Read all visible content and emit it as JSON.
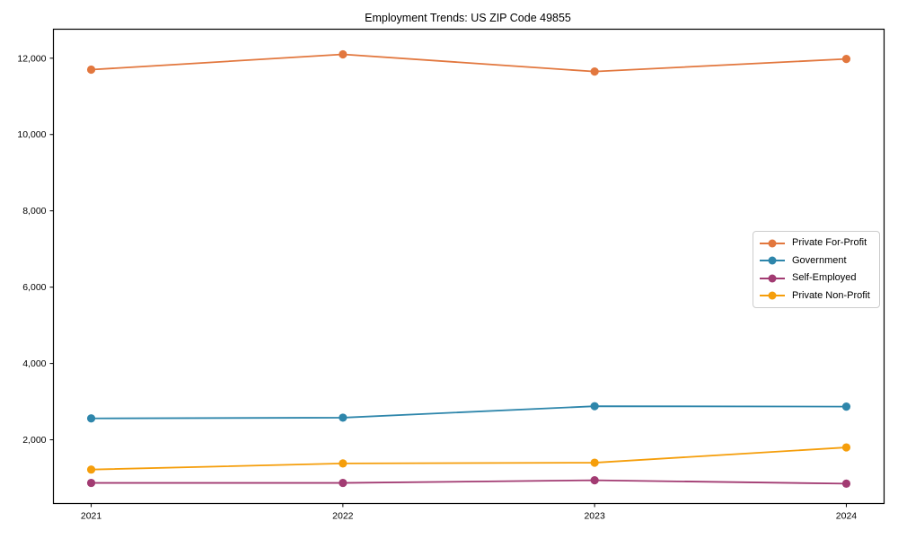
{
  "chart_data": {
    "type": "line",
    "title": "Employment Trends: US ZIP Code 49855",
    "x": [
      2021,
      2022,
      2023,
      2024
    ],
    "x_labels": [
      "2021",
      "2022",
      "2023",
      "2024"
    ],
    "series": [
      {
        "name": "Private For-Profit",
        "color": "#E2773E",
        "values": [
          11700,
          12100,
          11650,
          11980
        ]
      },
      {
        "name": "Government",
        "color": "#2E86AB",
        "values": [
          2560,
          2580,
          2880,
          2870
        ]
      },
      {
        "name": "Self-Employed",
        "color": "#A23B72",
        "values": [
          870,
          870,
          940,
          850
        ]
      },
      {
        "name": "Private Non-Profit",
        "color": "#F59E0B",
        "values": [
          1220,
          1380,
          1400,
          1800
        ]
      }
    ],
    "xlabel": "",
    "ylabel": "",
    "yticks": [
      2000,
      4000,
      6000,
      8000,
      10000,
      12000
    ],
    "ylim": [
      330,
      12760
    ],
    "xlim": [
      2020.85,
      2024.15
    ],
    "grid": false,
    "legend_position": "right-middle",
    "axis_color": "#000000",
    "text_color": "#000000"
  }
}
